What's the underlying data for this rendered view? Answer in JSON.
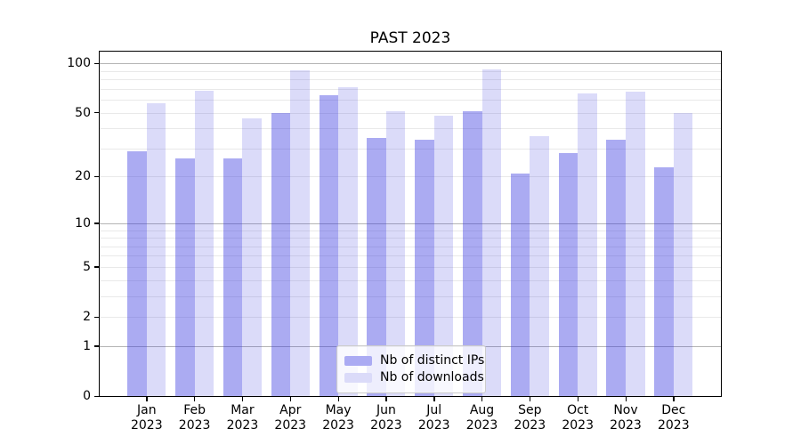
{
  "chart_data": {
    "type": "bar",
    "title": "PAST 2023",
    "categories": [
      "Jan",
      "Feb",
      "Mar",
      "Apr",
      "May",
      "Jun",
      "Jul",
      "Aug",
      "Sep",
      "Oct",
      "Nov",
      "Dec"
    ],
    "x_tick_second_line": "2023",
    "series": [
      {
        "name": "Nb of distinct IPs",
        "values": [
          29,
          26,
          26,
          50,
          64,
          35,
          34,
          51,
          21,
          28,
          34,
          23
        ],
        "fill_color": "rgba(55,55,224,0.42)",
        "legend_color": "#ababf3"
      },
      {
        "name": "Nb of downloads",
        "values": [
          57,
          68,
          46,
          91,
          72,
          51,
          48,
          92,
          36,
          66,
          67,
          50
        ],
        "fill_color": "rgba(55,55,224,0.18)",
        "legend_color": "#dbdbf9"
      }
    ],
    "yscale": "log10(y+1)",
    "ylim": [
      0,
      118
    ],
    "y_tick_labels": [
      "100",
      "50",
      "20",
      "10",
      "5",
      "2",
      "1",
      "0"
    ],
    "y_tick_values": [
      100,
      50,
      20,
      10,
      5,
      2,
      1,
      0
    ],
    "y_major_gridlines": [
      100,
      10,
      1
    ],
    "y_minor_gridlines": [
      90,
      80,
      70,
      60,
      50,
      40,
      30,
      20,
      9,
      8,
      7,
      6,
      5,
      4,
      3,
      2
    ],
    "grid": true,
    "legend_position": "lower center"
  }
}
